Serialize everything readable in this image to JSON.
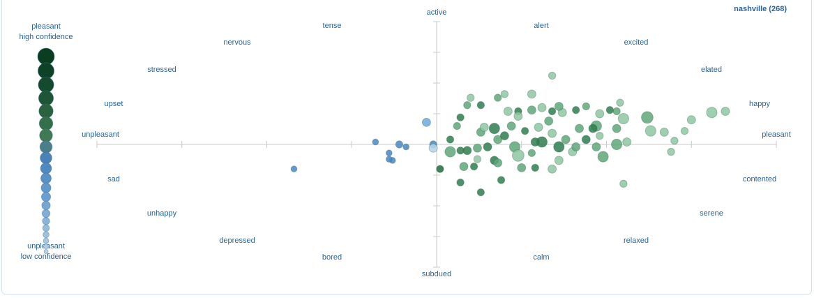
{
  "chart_data": {
    "type": "scatter",
    "title": "nashville (268)",
    "annotations": [
      "active",
      "alert",
      "excited",
      "elated",
      "happy",
      "pleasant",
      "contented",
      "serene",
      "relaxed",
      "calm",
      "subdued",
      "bored",
      "depressed",
      "unhappy",
      "sad",
      "unpleasant",
      "upset",
      "stressed",
      "nervous",
      "tense"
    ],
    "legend_top": [
      "pleasant",
      "high confidence"
    ],
    "legend_bottom": [
      "unpleasant",
      "low confidence"
    ],
    "xlim": [
      -1,
      1
    ],
    "ylim": [
      -1,
      1
    ],
    "xticks": [
      -1,
      -0.75,
      -0.5,
      -0.25,
      0,
      0.25,
      0.5,
      0.75,
      1
    ],
    "yticks": [
      -1,
      -0.75,
      -0.5,
      -0.25,
      0,
      0.25,
      0.5,
      0.75,
      1
    ],
    "x": [
      -0.03,
      -0.18,
      -0.11,
      -0.09,
      -0.14,
      -0.13,
      -0.14,
      -0.42,
      -0.01,
      -0.01,
      0.01,
      0.07,
      0.13,
      0.19,
      0.34,
      0.55,
      0.69,
      0.7,
      0.73,
      0.75,
      0.81,
      0.85,
      0.67,
      0.63,
      0.62,
      0.55,
      0.53,
      0.56,
      0.49,
      0.54,
      0.53,
      0.51,
      0.48,
      0.47,
      0.46,
      0.44,
      0.41,
      0.37,
      0.36,
      0.34,
      0.31,
      0.28,
      0.28,
      0.24,
      0.21,
      0.2,
      0.18,
      0.13,
      0.1,
      0.09,
      0.07,
      0.06,
      0.04,
      0.04,
      0.08,
      0.11,
      0.12,
      0.13,
      0.14,
      0.17,
      0.18,
      0.2,
      0.23,
      0.24,
      0.25,
      0.29,
      0.34,
      0.28,
      0.31,
      0.34,
      0.36,
      0.38,
      0.4,
      0.42,
      0.44,
      0.47,
      0.48,
      0.53,
      0.17,
      0.18,
      0.15,
      0.22,
      0.26,
      0.3,
      0.33,
      0.07,
      0.09,
      0.12,
      0.24,
      0.41,
      0.36,
      0.29
    ],
    "values": [
      0.18,
      0.02,
      0.0,
      -0.02,
      -0.07,
      -0.13,
      -0.12,
      -0.2,
      0.0,
      -0.03,
      -0.2,
      -0.31,
      -0.39,
      -0.29,
      0.56,
      -0.32,
      -0.06,
      0.03,
      0.11,
      0.2,
      0.26,
      0.27,
      0.1,
      0.11,
      0.22,
      0.21,
      0.0,
      0.02,
      -0.1,
      0.34,
      0.27,
      0.28,
      0.25,
      0.15,
      0.13,
      0.31,
      0.28,
      0.26,
      0.31,
      0.27,
      0.3,
      0.41,
      0.28,
      0.27,
      0.27,
      0.41,
      0.38,
      0.32,
      0.38,
      0.32,
      0.22,
      0.15,
      0.04,
      -0.06,
      -0.18,
      -0.18,
      -0.12,
      0.1,
      0.14,
      0.13,
      0.04,
      0.07,
      -0.02,
      -0.09,
      -0.19,
      -0.19,
      -0.2,
      -0.07,
      0.02,
      0.09,
      -0.02,
      0.04,
      -0.06,
      0.13,
      0.04,
      -0.02,
      0.07,
      0.13,
      -0.13,
      -0.15,
      -0.02,
      0.15,
      0.11,
      0.14,
      0.19,
      -0.05,
      -0.05,
      -0.03,
      0.23,
      -0.02,
      -0.13,
      0.02
    ],
    "sizes": [
      0.5,
      0.3,
      0.4,
      0.3,
      0.3,
      0.3,
      0.3,
      0.3,
      0.4,
      0.5,
      0.4,
      0.4,
      0.4,
      0.4,
      0.4,
      0.4,
      0.4,
      0.4,
      0.4,
      0.5,
      0.7,
      0.5,
      0.5,
      0.7,
      0.8,
      0.7,
      0.7,
      0.5,
      0.7,
      0.4,
      0.4,
      0.4,
      0.5,
      0.7,
      0.5,
      0.4,
      0.4,
      0.5,
      0.5,
      0.4,
      0.5,
      0.5,
      0.5,
      0.4,
      0.5,
      0.4,
      0.4,
      0.4,
      0.4,
      0.4,
      0.4,
      0.4,
      0.4,
      0.7,
      0.5,
      0.4,
      0.4,
      0.5,
      0.5,
      0.7,
      0.5,
      0.5,
      0.7,
      0.8,
      0.5,
      0.4,
      0.5,
      0.4,
      0.7,
      0.5,
      0.7,
      0.5,
      0.5,
      0.5,
      0.5,
      0.5,
      0.4,
      0.5,
      0.5,
      0.5,
      0.5,
      0.5,
      0.4,
      0.5,
      0.5,
      0.4,
      0.5,
      0.5,
      0.5,
      0.5,
      0.5,
      0.5
    ],
    "colors": [
      "#6fa8dc",
      "#4a86c5",
      "#4a86c5",
      "#4a86c5",
      "#4a86c5",
      "#4a86c5",
      "#4a86c5",
      "#4a86c5",
      "#4a86c5",
      "#b9d3ea",
      "#1f6b3d",
      "#2f7d4f",
      "#2f7d4f",
      "#2f7d4f",
      "#8fc6a2",
      "#8fc6a2",
      "#8fc6a2",
      "#8fc6a2",
      "#8fc6a2",
      "#8fc6a2",
      "#8fc6a2",
      "#8fc6a2",
      "#8fc6a2",
      "#8fc6a2",
      "#5fa77a",
      "#8fc6a2",
      "#5fa77a",
      "#8fc6a2",
      "#5fa77a",
      "#8fc6a2",
      "#5fa77a",
      "#2f7d4f",
      "#8fc6a2",
      "#5fa77a",
      "#2f7d4f",
      "#5fa77a",
      "#2f7d4f",
      "#8fc6a2",
      "#5fa77a",
      "#2f7d4f",
      "#8fc6a2",
      "#8fc6a2",
      "#5fa77a",
      "#2f7d4f",
      "#8fc6a2",
      "#8fc6a2",
      "#5fa77a",
      "#2f7d4f",
      "#8fc6a2",
      "#5fa77a",
      "#2f7d4f",
      "#5fa77a",
      "#2f7d4f",
      "#5fa77a",
      "#5fa77a",
      "#2f7d4f",
      "#8fc6a2",
      "#5fa77a",
      "#8fc6a2",
      "#2f7d4f",
      "#5fa77a",
      "#2f7d4f",
      "#5fa77a",
      "#8fc6a2",
      "#5fa77a",
      "#2f7d4f",
      "#8fc6a2",
      "#5fa77a",
      "#2f7d4f",
      "#8fc6a2",
      "#2f7d4f",
      "#5fa77a",
      "#8fc6a2",
      "#5fa77a",
      "#2f7d4f",
      "#5fa77a",
      "#8fc6a2",
      "#5fa77a",
      "#2f7d4f",
      "#5fa77a",
      "#2f7d4f",
      "#5fa77a",
      "#2f7d4f",
      "#8fc6a2",
      "#5fa77a",
      "#2f7d4f",
      "#2f7d4f",
      "#5fa77a",
      "#8fc6a2",
      "#5fa77a",
      "#8fc6a2",
      "#2f7d4f"
    ]
  }
}
